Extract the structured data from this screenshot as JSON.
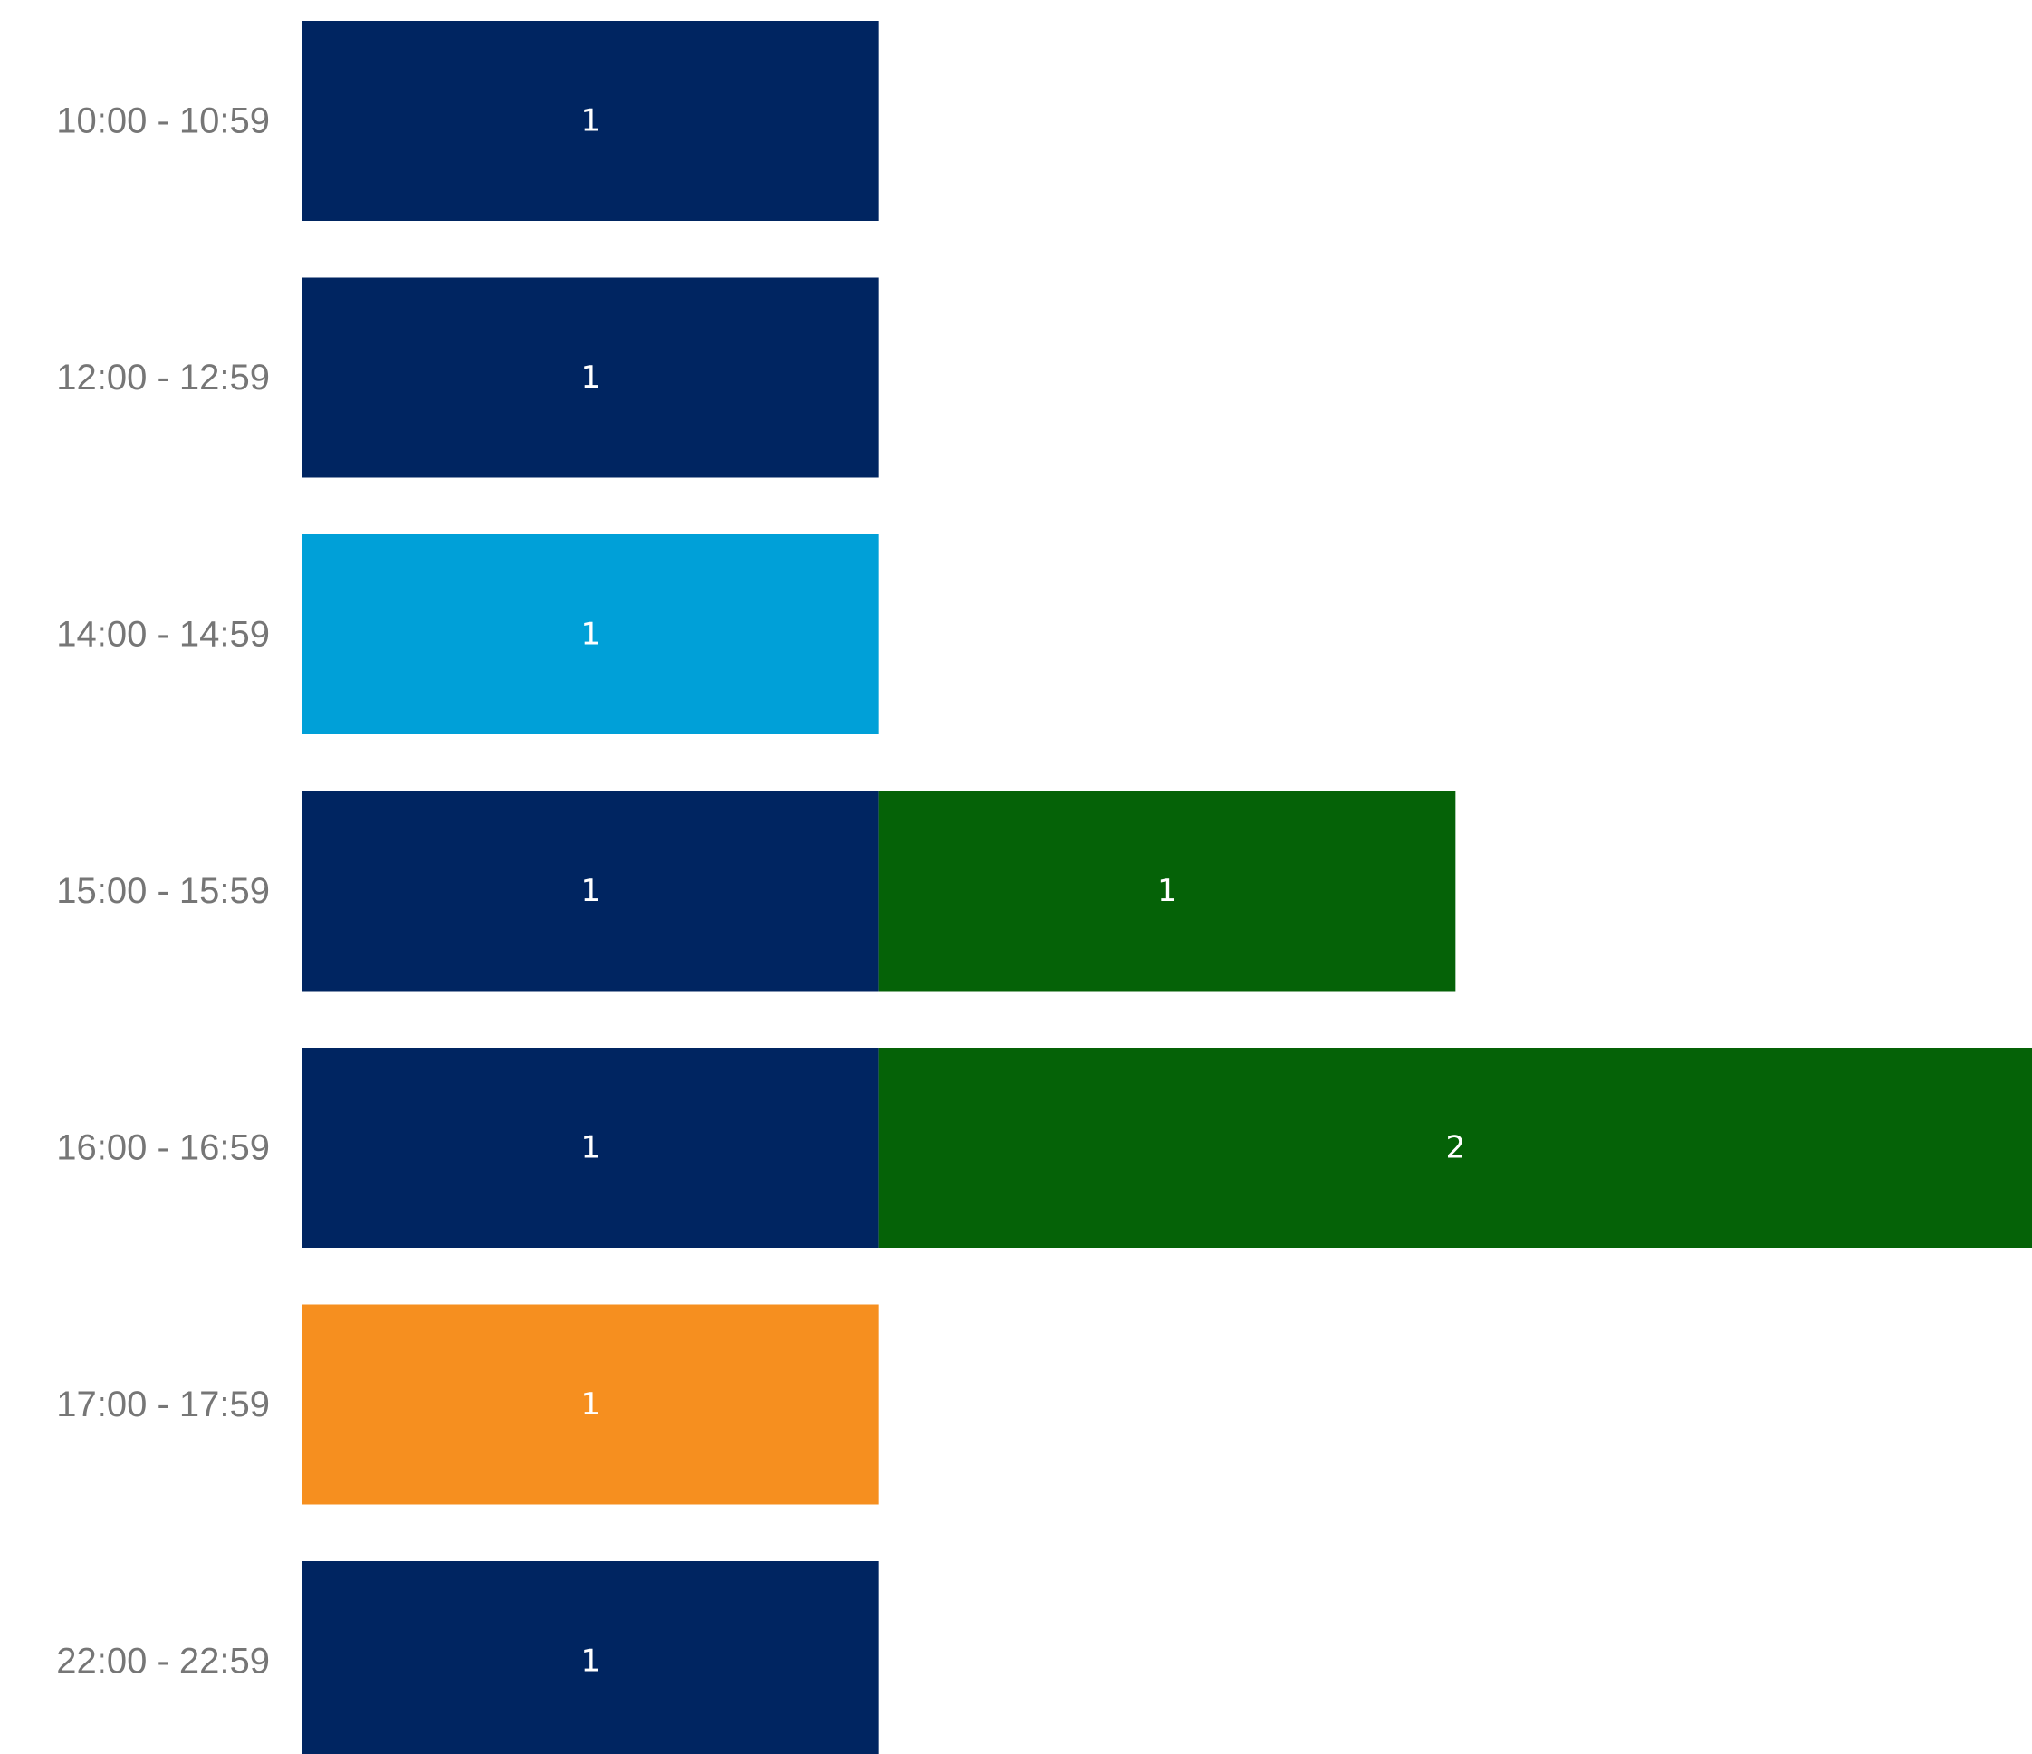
{
  "chart_data": {
    "type": "bar",
    "orientation": "horizontal",
    "stacked": true,
    "categories": [
      "10:00 - 10:59",
      "12:00 - 12:59",
      "14:00 - 14:59",
      "15:00 - 15:59",
      "16:00 - 16:59",
      "17:00 - 17:59",
      "22:00 - 22:59"
    ],
    "series": [
      {
        "color": "#002561",
        "values": [
          1,
          1,
          0,
          1,
          1,
          0,
          1
        ]
      },
      {
        "color": "#00A0D8",
        "values": [
          0,
          0,
          1,
          0,
          0,
          0,
          0
        ]
      },
      {
        "color": "#F68F1F",
        "values": [
          0,
          0,
          0,
          0,
          0,
          1,
          0
        ]
      },
      {
        "color": "#056207",
        "values": [
          0,
          0,
          0,
          1,
          2,
          0,
          0
        ]
      }
    ],
    "xlim": [
      0,
      3
    ],
    "grid": false,
    "title": "",
    "xlabel": "",
    "ylabel": ""
  }
}
